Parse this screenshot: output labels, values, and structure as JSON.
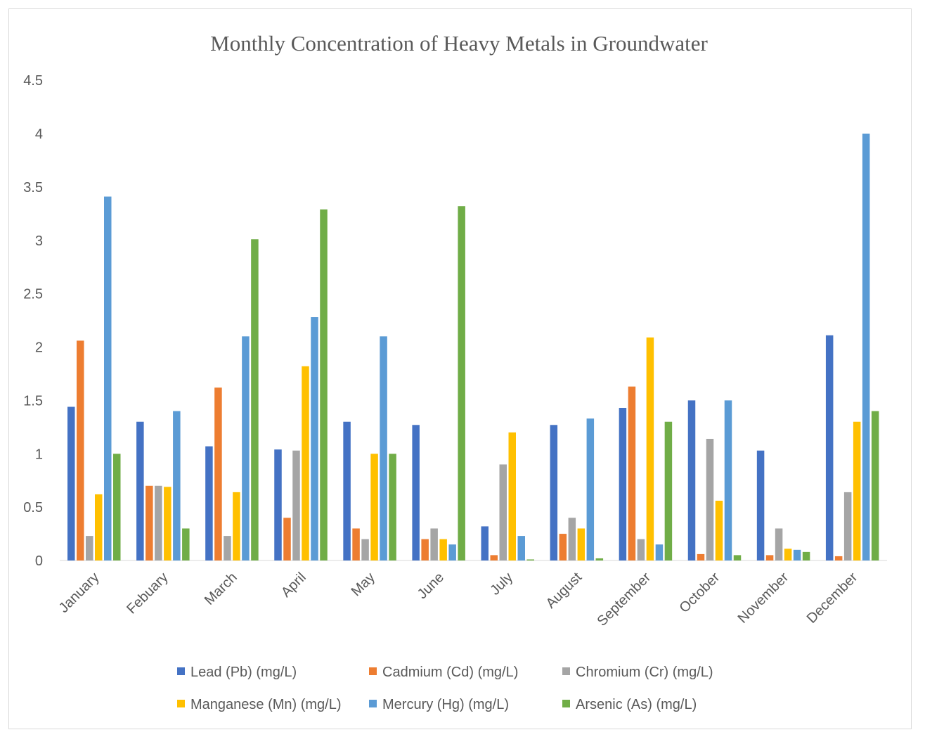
{
  "chart_data": {
    "type": "bar",
    "title": "Monthly Concentration of Heavy Metals in Groundwater",
    "xlabel": "",
    "ylabel": "",
    "ylim": [
      0,
      4.5
    ],
    "yticks": [
      "0",
      "0.5",
      "1",
      "1.5",
      "2",
      "2.5",
      "3",
      "3.5",
      "4",
      "4.5"
    ],
    "grid": false,
    "legend_position": "bottom",
    "categories": [
      "January",
      "Febuary",
      "March",
      "April",
      "May",
      "June",
      "July",
      "August",
      "September",
      "October",
      "November",
      "December"
    ],
    "series": [
      {
        "name": "Lead (Pb) (mg/L)",
        "color": "#4472c4",
        "values": [
          1.44,
          1.3,
          1.07,
          1.04,
          1.3,
          1.27,
          0.32,
          1.27,
          1.43,
          1.5,
          1.03,
          2.11
        ]
      },
      {
        "name": "Cadmium (Cd) (mg/L)",
        "color": "#ed7d31",
        "values": [
          2.06,
          0.7,
          1.62,
          0.4,
          0.3,
          0.2,
          0.05,
          0.25,
          1.63,
          0.06,
          0.05,
          0.04
        ]
      },
      {
        "name": "Chromium (Cr) (mg/L)",
        "color": "#a5a5a5",
        "values": [
          0.23,
          0.7,
          0.23,
          1.03,
          0.2,
          0.3,
          0.9,
          0.4,
          0.2,
          1.14,
          0.3,
          0.64
        ]
      },
      {
        "name": "Manganese (Mn) (mg/L)",
        "color": "#ffc000",
        "values": [
          0.62,
          0.69,
          0.64,
          1.82,
          1.0,
          0.2,
          1.2,
          0.3,
          2.09,
          0.56,
          0.11,
          1.3
        ]
      },
      {
        "name": "Mercury (Hg) (mg/L)",
        "color": "#5b9bd5",
        "values": [
          3.41,
          1.4,
          2.1,
          2.28,
          2.1,
          0.15,
          0.23,
          1.33,
          0.15,
          1.5,
          0.1,
          4.0
        ]
      },
      {
        "name": "Arsenic (As) (mg/L)",
        "color": "#70ad47",
        "values": [
          1.0,
          0.3,
          3.01,
          3.29,
          1.0,
          3.32,
          0.01,
          0.02,
          1.3,
          0.05,
          0.08,
          1.4
        ]
      }
    ]
  }
}
